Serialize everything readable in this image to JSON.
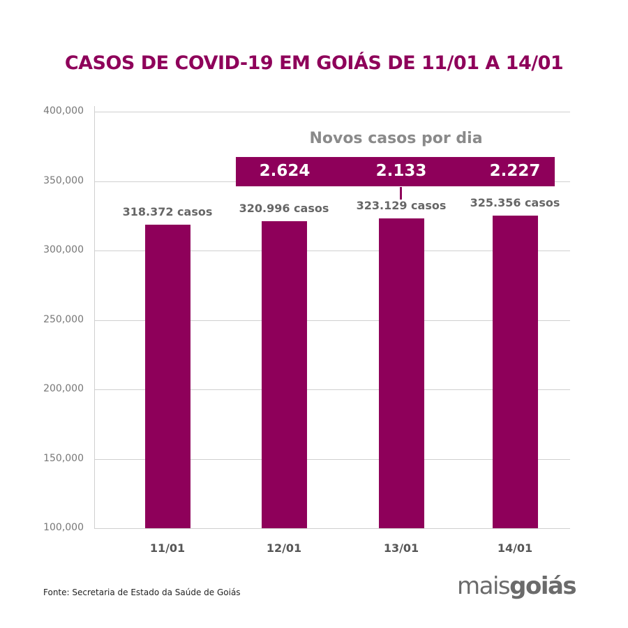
{
  "title": "CASOS DE COVID-19 EM GOIÁS DE 11/01 A 14/01",
  "source": "Fonte: Secretaria de Estado da Saúde de Goiás",
  "logo": {
    "part1": "mais",
    "part2": "goiás"
  },
  "novos": {
    "title": "Novos casos por dia",
    "values": [
      "2.624",
      "2.133",
      "2.227"
    ]
  },
  "chart_data": {
    "type": "bar",
    "title": "CASOS DE COVID-19 EM GOIÁS DE 11/01 A 14/01",
    "categories": [
      "11/01",
      "12/01",
      "13/01",
      "14/01"
    ],
    "values": [
      318372,
      320996,
      323129,
      325356
    ],
    "data_labels": [
      "318.372 casos",
      "320.996 casos",
      "323.129 casos",
      "325.356 casos"
    ],
    "ylim": [
      100000,
      400000
    ],
    "yticks": [
      "100,000",
      "150,000",
      "200,000",
      "250,000",
      "300,000",
      "350,000",
      "400,000"
    ],
    "ytick_values": [
      100000,
      150000,
      200000,
      250000,
      300000,
      350000,
      400000
    ],
    "grid": true,
    "color": "#8e005a"
  }
}
